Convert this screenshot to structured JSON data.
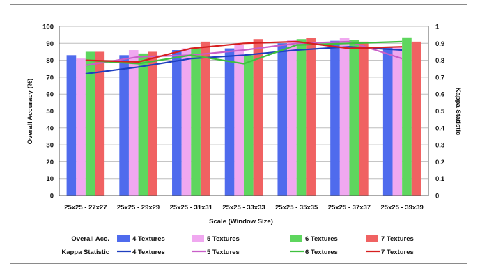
{
  "chart_data": {
    "type": "bar",
    "xlabel": "Scale (Window Size)",
    "ylabel": "Overall Accuracy (%)",
    "y2label": "Kappa Statistic",
    "categories": [
      "25x25 - 27x27",
      "25x25 - 29x29",
      "25x25 - 31x31",
      "25x25 - 33x33",
      "25x25 - 35x35",
      "25x25 - 37x37",
      "25x25 - 39x39"
    ],
    "ylim": [
      0,
      100
    ],
    "y_ticks": [
      0,
      10,
      20,
      30,
      40,
      50,
      60,
      70,
      80,
      90,
      100
    ],
    "y2lim": [
      0,
      1
    ],
    "y2_ticks": [
      "0",
      "0.1",
      "0.2",
      "0.3",
      "0.4",
      "0.5",
      "0.6",
      "0.7",
      "0.8",
      "0.9",
      "1"
    ],
    "grid": "horizontal",
    "legend_position": "bottom",
    "legend_group_labels": [
      "Overall Acc.",
      "Kappa Statistic"
    ],
    "series": [
      {
        "name": "4 Textures",
        "kind": "bar",
        "axis": "left",
        "color": "#4f6bed",
        "values": [
          83,
          83,
          86,
          87,
          90,
          91.5,
          88
        ]
      },
      {
        "name": "5 Textures",
        "kind": "bar",
        "axis": "left",
        "color": "#f0a8f0",
        "values": [
          81,
          86,
          87,
          89,
          92,
          93,
          88
        ]
      },
      {
        "name": "6 Textures",
        "kind": "bar",
        "axis": "left",
        "color": "#5ed65e",
        "values": [
          85,
          84,
          87,
          83,
          92.5,
          92,
          93.5
        ]
      },
      {
        "name": "7 Textures",
        "kind": "bar",
        "axis": "left",
        "color": "#f06262",
        "values": [
          85,
          85,
          91,
          92.5,
          93,
          91,
          91
        ]
      },
      {
        "name": "4 Textures",
        "kind": "line",
        "axis": "right",
        "color": "#1f3fbf",
        "values": [
          0.72,
          0.76,
          0.81,
          0.83,
          0.86,
          0.88,
          0.86
        ]
      },
      {
        "name": "5 Textures",
        "kind": "line",
        "axis": "right",
        "color": "#c85ec8",
        "values": [
          0.77,
          0.82,
          0.83,
          0.86,
          0.9,
          0.91,
          0.81
        ]
      },
      {
        "name": "6 Textures",
        "kind": "line",
        "axis": "right",
        "color": "#3fc03f",
        "values": [
          0.8,
          0.78,
          0.83,
          0.78,
          0.89,
          0.9,
          0.91
        ]
      },
      {
        "name": "7 Textures",
        "kind": "line",
        "axis": "right",
        "color": "#d61f1f",
        "values": [
          0.8,
          0.79,
          0.87,
          0.9,
          0.91,
          0.87,
          0.88
        ]
      }
    ]
  }
}
